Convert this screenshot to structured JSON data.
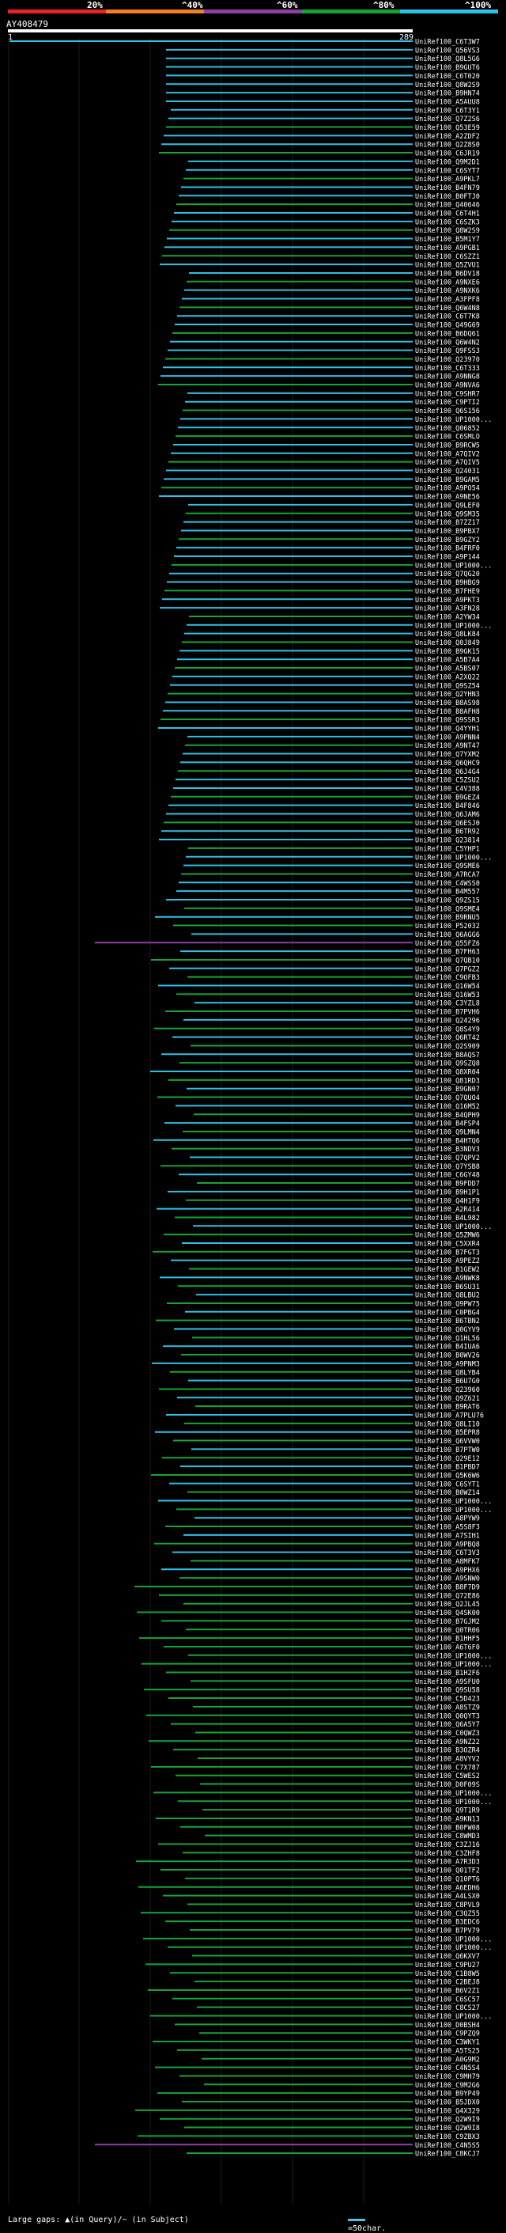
{
  "legend": {
    "ticks": [
      "20%",
      "^40%",
      "^60%",
      "^80%",
      "^100%"
    ],
    "colors": [
      "#e8232a",
      "#f47e20",
      "#8e3fa0",
      "#16a43a",
      "#2fc1e4"
    ]
  },
  "query": {
    "id": "AY408479",
    "start": "1",
    "end": "289"
  },
  "hits": [
    "UniRef100_C6T3W7",
    "UniRef100_Q56VS3",
    "UniRef100_Q8L5G6",
    "UniRef100_B9GUT6",
    "UniRef100_C6T020",
    "UniRef100_Q8W2S9",
    "UniRef100_B9HN74",
    "UniRef100_A5AUU8",
    "UniRef100_C6T3Y1",
    "UniRef100_Q7Z2S6",
    "UniRef100_Q53E59",
    "UniRef100_A2ZDF2",
    "UniRef100_Q2Z8S0",
    "UniRef100_C6JR19",
    "UniRef100_Q9M2D1",
    "UniRef100_C6SYT7",
    "UniRef100_A9PKL7",
    "UniRef100_B4FN79",
    "UniRef100_B0FTJ0",
    "UniRef100_Q40646",
    "UniRef100_C6T4H1",
    "UniRef100_C6SZK3",
    "UniRef100_Q8W2S9",
    "UniRef100_B5M1Y7",
    "UniRef100_A9PGB1",
    "UniRef100_C6SZZ1",
    "UniRef100_Q5ZVU1",
    "UniRef100_B6DV18",
    "UniRef100_A9NXE6",
    "UniRef100_A9NXK6",
    "UniRef100_A3FPF8",
    "UniRef100_Q6W4N8",
    "UniRef100_C6T7K8",
    "UniRef100_Q49G69",
    "UniRef100_B6DQ61",
    "UniRef100_Q6W4N2",
    "UniRef100_Q9FSS3",
    "UniRef100_Q23970",
    "UniRef100_C6T333",
    "UniRef100_A9NNG8",
    "UniRef100_A9NVA6",
    "UniRef100_C9SHR7",
    "UniRef100_C9PTI2",
    "UniRef100_Q6S156",
    "UniRef100_UP1000...",
    "UniRef100_Q06852",
    "UniRef100_C6SMLO",
    "UniRef100_B9RCW5",
    "UniRef100_A7QIV2",
    "UniRef100_A7QIV5",
    "UniRef100_Q24031",
    "UniRef100_B9GAM5",
    "UniRef100_A9PO54",
    "UniRef100_A9NE56",
    "UniRef100_Q9LEF0",
    "UniRef100_Q9SM35",
    "UniRef100_B7ZZ17",
    "UniRef100_B9PBX7",
    "UniRef100_B9GZY2",
    "UniRef100_B4FRF0",
    "UniRef100_A9P144",
    "UniRef100_UP1000...",
    "UniRef100_Q7QG20",
    "UniRef100_B9HBG9",
    "UniRef100_B7FHE9",
    "UniRef100_A9PKT3",
    "UniRef100_A3FN28",
    "UniRef100_A2YW34",
    "UniRef100_UP1000...",
    "UniRef100_Q8LK84",
    "UniRef100_Q0J849",
    "UniRef100_B9GK15",
    "UniRef100_A5B7A4",
    "UniRef100_A5BS07",
    "UniRef100_A2XQ22",
    "UniRef100_Q9SZ54",
    "UniRef100_Q2YHN3",
    "UniRef100_B8AS98",
    "UniRef100_B8AFH8",
    "UniRef100_Q9SSR3",
    "UniRef100_Q4YYH1",
    "UniRef100_A9PNN4",
    "UniRef100_A9NT47",
    "UniRef100_Q7YXM2",
    "UniRef100_Q6QHC9",
    "UniRef100_Q6J4G4",
    "UniRef100_C5ZSU2",
    "UniRef100_C4V388",
    "UniRef100_B9GEZ4",
    "UniRef100_B4F846",
    "UniRef100_Q6JAM6",
    "UniRef100_Q6ESJ0",
    "UniRef100_B6TR92",
    "UniRef100_Q23814",
    "UniRef100_C5YHP1",
    "UniRef100_UP1000...",
    "UniRef100_Q9SME6",
    "UniRef100_A7RCA7",
    "UniRef100_C4WSS0",
    "UniRef100_B4M557",
    "UniRef100_Q9ZS15",
    "UniRef100_Q9SME4",
    "UniRef100_B9RNU5",
    "UniRef100_P52032",
    "UniRef100_Q6AGG6",
    "UniRef100_Q55FZ6",
    "UniRef100_B7FH63",
    "UniRef100_Q7QB10",
    "UniRef100_Q7PGZ2",
    "UniRef100_C9OFB3",
    "UniRef100_Q16W54",
    "UniRef100_Q16W53",
    "UniRef100_C3YZL8",
    "UniRef100_B7PVH6",
    "UniRef100_Q24296",
    "UniRef100_Q8S4Y9",
    "UniRef100_Q6RT42",
    "UniRef100_Q2S909",
    "UniRef100_B8AQS7",
    "UniRef100_Q9SZQ8",
    "UniRef100_Q8XR04",
    "UniRef100_Q81RD3",
    "UniRef100_B9GN07",
    "UniRef100_Q7QUO4",
    "UniRef100_Q16M52",
    "UniRef100_B4QPH9",
    "UniRef100_B4FSP4",
    "UniRef100_Q9LMN4",
    "UniRef100_B4HTQ6",
    "UniRef100_B3NDV3",
    "UniRef100_Q7QPV2",
    "UniRef100_Q7YSB8",
    "UniRef100_C6GY48",
    "UniRef100_B9FDD7",
    "UniRef100_B9H1P1",
    "UniRef100_Q4H1F9",
    "UniRef100_A2R414",
    "UniRef100_B4L982",
    "UniRef100_UP1000...",
    "UniRef100_Q5ZMW6",
    "UniRef100_C5XXR4",
    "UniRef100_B7FGT3",
    "UniRef100_A9PEZ2",
    "UniRef100_B1GEW2",
    "UniRef100_A9NWK8",
    "UniRef100_B6SU31",
    "UniRef100_Q8LBU2",
    "UniRef100_Q9PW75",
    "UniRef100_C0PBG4",
    "UniRef100_B6TBN2",
    "UniRef100_Q0GYV9",
    "UniRef100_Q1HL56",
    "UniRef100_B4IUA6",
    "UniRef100_B0WV26",
    "UniRef100_A9PNM3",
    "UniRef100_Q8LYB4",
    "UniRef100_B6U7G0",
    "UniRef100_Q23960",
    "UniRef100_Q9Z621",
    "UniRef100_B9RAT6",
    "UniRef100_A7PLU76",
    "UniRef100_Q8LI10",
    "UniRef100_B5EPR8",
    "UniRef100_Q6VVW0",
    "UniRef100_B7PTW0",
    "UniRef100_Q29E12",
    "UniRef100_B1PBD7",
    "UniRef100_Q5K6W6",
    "UniRef100_C6SYT1",
    "UniRef100_B0WZ14",
    "UniRef100_UP1000...",
    "UniRef100_UP1000...",
    "UniRef100_A8PYW9",
    "UniRef100_A5S8F3",
    "UniRef100_A7SIH1",
    "UniRef100_A9PBQ8",
    "UniRef100_C6T3V3",
    "UniRef100_A8MFK7",
    "UniRef100_A9PHX6",
    "UniRef100_A9SNW0",
    "UniRef100_B8F7D9",
    "UniRef100_Q72E86",
    "UniRef100_Q2JL45",
    "UniRef100_Q4SK00",
    "UniRef100_B7GJM2",
    "UniRef100_Q0TR06",
    "UniRef100_B1HHF5",
    "UniRef100_A6T6F0",
    "UniRef100_UP1000...",
    "UniRef100_UP1000...",
    "UniRef100_B1H2F6",
    "UniRef100_A9SFU0",
    "UniRef100_Q9SU58",
    "UniRef100_C5D423",
    "UniRef100_A8STZ9",
    "UniRef100_Q0QYT3",
    "UniRef100_Q6A5Y7",
    "UniRef100_C0QWZ3",
    "UniRef100_A9NZ22",
    "UniRef100_B3OZR4",
    "UniRef100_A8VYV2",
    "UniRef100_C7X787",
    "UniRef100_C5WES2",
    "UniRef100_D0F09S",
    "UniRef100_UP1000...",
    "UniRef100_UP1000...",
    "UniRef100_Q9T1R9",
    "UniRef100_A9KN13",
    "UniRef100_B0FW08",
    "UniRef100_C8WMD3",
    "UniRef100_C3ZJ16",
    "UniRef100_C3ZHF8",
    "UniRef100_A7R3D3",
    "UniRef100_Q01TF2",
    "UniRef100_Q10PT6",
    "UniRef100_A6EDH6",
    "UniRef100_A4LSX0",
    "UniRef100_C8PVL9",
    "UniRef100_C3QZ55",
    "UniRef100_B3EDC6",
    "UniRef100_B7PV79",
    "UniRef100_UP1000...",
    "UniRef100_UP1000...",
    "UniRef100_Q6KXV7",
    "UniRef100_C9PU27",
    "UniRef100_C1B8W5",
    "UniRef100_C2BEJ8",
    "UniRef100_B6V2Z1",
    "UniRef100_C6SC57",
    "UniRef100_C8CS27",
    "UniRef100_UP1000...",
    "UniRef100_D0BSH4",
    "UniRef100_C9PZQ9",
    "UniRef100_C3WKY1",
    "UniRef100_A5TS25",
    "UniRef100_A0G9M2",
    "UniRef100_C4N5S4",
    "UniRef100_C9MH79",
    "UniRef100_C9M2G6",
    "UniRef100_B9YP49",
    "UniRef100_B5JDX0",
    "UniRef100_Q4X329",
    "UniRef100_Q2W9I9",
    "UniRef100_Q2W9I8",
    "UniRef100_C9ZBX3",
    "UniRef100_C4N5S5",
    "UniRef100_C8KCJ7"
  ],
  "footer": {
    "gaps_label": "Large gaps: ▲(in Query)/~ (in Subject)",
    "scale_label": "=50char."
  }
}
